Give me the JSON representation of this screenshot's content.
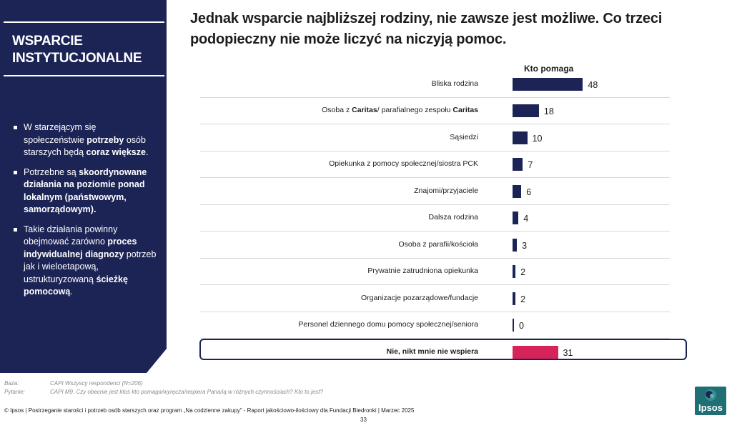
{
  "panel": {
    "title": "WSPARCIE\nINSTYTUCJONALNE",
    "bullets": [
      [
        {
          "t": "W starzejącym się społeczeństwie ",
          "b": false
        },
        {
          "t": "potrzeby",
          "b": true
        },
        {
          "t": " osób starszych będą ",
          "b": false
        },
        {
          "t": "coraz większe",
          "b": true
        },
        {
          "t": ".",
          "b": false
        }
      ],
      [
        {
          "t": "Potrzebne są ",
          "b": false
        },
        {
          "t": "skoordynowane działania na poziomie ponad lokalnym (państwowym, samorządowym).",
          "b": true
        }
      ],
      [
        {
          "t": "Takie działania powinny obejmować zarówno ",
          "b": false
        },
        {
          "t": "proces indywidualnej diagnozy",
          "b": true
        },
        {
          "t": " potrzeb jak i wieloetapową, ustrukturyzowaną ",
          "b": false
        },
        {
          "t": "ścieżkę pomocową",
          "b": true
        },
        {
          "t": ".",
          "b": false
        }
      ]
    ]
  },
  "headline": "Jednak wsparcie najbliższej rodziny, nie zawsze jest możliwe. Co trzeci podopieczny nie może liczyć na niczyją pomoc.",
  "chart_data": {
    "type": "bar",
    "orientation": "horizontal",
    "column_header": "Kto pomaga",
    "categories": [
      [
        {
          "t": "Bliska rodzina",
          "b": false
        }
      ],
      [
        {
          "t": "Osoba z ",
          "b": false
        },
        {
          "t": "Caritas",
          "b": true
        },
        {
          "t": "/ parafialnego zespołu ",
          "b": false
        },
        {
          "t": "Caritas",
          "b": true
        }
      ],
      [
        {
          "t": "Sąsiedzi",
          "b": false
        }
      ],
      [
        {
          "t": "Opiekunka z pomocy społecznej/siostra PCK",
          "b": false
        }
      ],
      [
        {
          "t": "Znajomi/przyjaciele",
          "b": false
        }
      ],
      [
        {
          "t": "Dalsza rodzina",
          "b": false
        }
      ],
      [
        {
          "t": "Osoba z parafii/kościoła",
          "b": false
        }
      ],
      [
        {
          "t": "Prywatnie zatrudniona opiekunka",
          "b": false
        }
      ],
      [
        {
          "t": "Organizacje pozarządowe/fundacje",
          "b": false
        }
      ],
      [
        {
          "t": "Personel dziennego domu pomocy społecznej/seniora",
          "b": false
        }
      ],
      [
        {
          "t": "Nie, nikt mnie nie wspiera",
          "b": true
        }
      ]
    ],
    "values": [
      48,
      18,
      10,
      7,
      6,
      4,
      3,
      2,
      2,
      0,
      31
    ],
    "highlight_index": 10,
    "colors": {
      "bar": "#1c2456",
      "highlight": "#d6245a"
    }
  },
  "meta": {
    "baza_label": "Baza:",
    "baza_value": "CAPI Wszyscy respondenci (N=206)",
    "pytanie_label": "Pytanie:",
    "pytanie_value": "CAPI M9. Czy obecnie jest ktoś kto pomaga/wyręcza/wspiera Pana/ią w różnych czynnościach? Kto to jest?"
  },
  "footer": "© Ipsos | Postrzeganie starości i potrzeb osób starszych oraz program „Na codzienne zakupy” - Raport jakościowo-ilościowy dla Fundacji Biedronki | Marzec 2025",
  "page_number": "33",
  "logo_text": "Ipsos"
}
